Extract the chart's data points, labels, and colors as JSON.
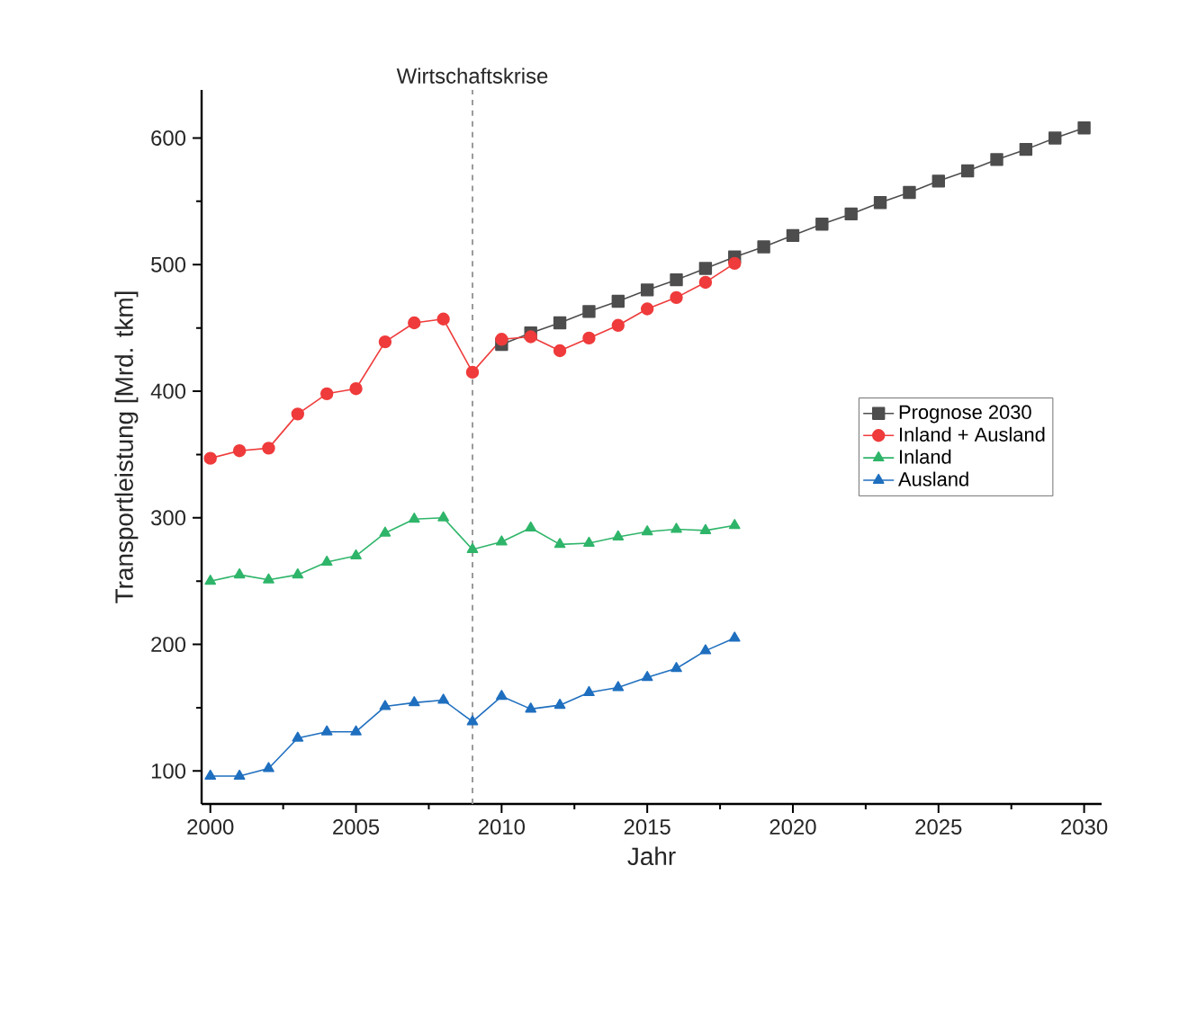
{
  "chart_data": {
    "type": "line",
    "xlabel": "Jahr",
    "ylabel": "Transportleistung [Mrd. tkm]",
    "xlim": [
      1999.7,
      2030.6
    ],
    "ylim": [
      74,
      638
    ],
    "xticks": [
      2000,
      2005,
      2010,
      2015,
      2020,
      2025,
      2030
    ],
    "yticks": [
      100,
      200,
      300,
      400,
      500,
      600
    ],
    "legend": "right",
    "grid": false,
    "line_style": "solid",
    "ref_lines": [
      {
        "axis": "x",
        "value": 2009,
        "label": "Wirtschaftskrise",
        "color": "#9a9a9a",
        "line_style": "dashed"
      }
    ],
    "series": [
      {
        "name": "Prognose 2030",
        "color": "#4d4d4d",
        "marker": "square",
        "x": [
          2010,
          2011,
          2012,
          2013,
          2014,
          2015,
          2016,
          2017,
          2018,
          2019,
          2020,
          2021,
          2022,
          2023,
          2024,
          2025,
          2026,
          2027,
          2028,
          2029,
          2030
        ],
        "values": [
          437,
          446,
          454,
          463,
          471,
          480,
          488,
          497,
          506,
          514,
          523,
          532,
          540,
          549,
          557,
          566,
          574,
          583,
          591,
          600,
          608
        ]
      },
      {
        "name": "Inland + Ausland",
        "color": "#ef3b3b",
        "marker": "circle",
        "x": [
          2000,
          2001,
          2002,
          2003,
          2004,
          2005,
          2006,
          2007,
          2008,
          2009,
          2010,
          2011,
          2012,
          2013,
          2014,
          2015,
          2016,
          2017,
          2018
        ],
        "values": [
          347,
          353,
          355,
          382,
          398,
          402,
          439,
          454,
          457,
          415,
          441,
          443,
          432,
          442,
          452,
          465,
          474,
          486,
          501
        ]
      },
      {
        "name": "Inland",
        "color": "#2fb56a",
        "marker": "triangle_down",
        "x": [
          2000,
          2001,
          2002,
          2003,
          2004,
          2005,
          2006,
          2007,
          2008,
          2009,
          2010,
          2011,
          2012,
          2013,
          2014,
          2015,
          2016,
          2017,
          2018
        ],
        "values": [
          250,
          255,
          251,
          255,
          265,
          270,
          288,
          299,
          300,
          275,
          281,
          292,
          279,
          280,
          285,
          289,
          291,
          290,
          294
        ]
      },
      {
        "name": "Ausland",
        "color": "#1f6fbf",
        "marker": "triangle",
        "x": [
          2000,
          2001,
          2002,
          2003,
          2004,
          2005,
          2006,
          2007,
          2008,
          2009,
          2010,
          2011,
          2012,
          2013,
          2014,
          2015,
          2016,
          2017,
          2018
        ],
        "values": [
          96,
          96,
          102,
          126,
          131,
          131,
          151,
          154,
          156,
          139,
          159,
          149,
          152,
          162,
          166,
          174,
          181,
          195,
          205
        ]
      }
    ]
  }
}
